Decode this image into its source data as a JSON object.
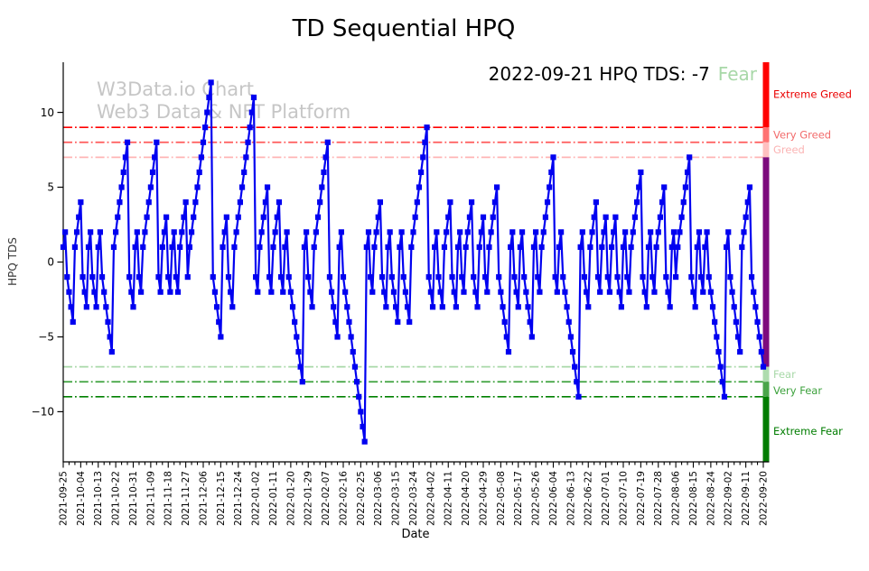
{
  "title": "TD Sequential HPQ",
  "watermark": {
    "line1": "W3Data.io Chart",
    "line2": "Web3 Data & NFT Platform",
    "color": "#c6c6c6"
  },
  "annotation": {
    "prefix": "2022-09-21 HPQ TDS: -7",
    "status": "Fear",
    "status_color": "#a8d8a8"
  },
  "axes": {
    "xlabel": "Date",
    "ylabel": "HPQ TDS",
    "ytick_labels": [
      "−10",
      "−5",
      "0",
      "5",
      "10"
    ],
    "yticks": [
      -10,
      -5,
      0,
      5,
      10
    ]
  },
  "chart_data": {
    "type": "line",
    "title": "TD Sequential HPQ",
    "xlabel": "Date",
    "ylabel": "HPQ TDS",
    "ylim": [
      -13.35,
      13.35
    ],
    "line_color": "#0000f0",
    "marker": "square",
    "grid": false,
    "x_tick_interval_days": 9,
    "x_minor_tick_interval_days": 3,
    "x_tick_labels": [
      "2021-09-25",
      "2021-10-04",
      "2021-10-13",
      "2021-10-22",
      "2021-10-31",
      "2021-11-09",
      "2021-11-18",
      "2021-11-27",
      "2021-12-06",
      "2021-12-15",
      "2021-12-24",
      "2022-01-02",
      "2022-01-11",
      "2022-01-20",
      "2022-01-29",
      "2022-02-07",
      "2022-02-16",
      "2022-02-25",
      "2022-03-06",
      "2022-03-15",
      "2022-03-24",
      "2022-04-02",
      "2022-04-11",
      "2022-04-20",
      "2022-04-29",
      "2022-05-08",
      "2022-05-17",
      "2022-05-26",
      "2022-06-04",
      "2022-06-13",
      "2022-06-22",
      "2022-07-01",
      "2022-07-10",
      "2022-07-19",
      "2022-07-28",
      "2022-08-06",
      "2022-08-15",
      "2022-08-24",
      "2022-09-02",
      "2022-09-11",
      "2022-09-20"
    ],
    "values": [
      1,
      2,
      -1,
      -2,
      -3,
      -4,
      1,
      2,
      3,
      4,
      -1,
      -2,
      -3,
      1,
      2,
      -1,
      -2,
      -3,
      1,
      2,
      -1,
      -2,
      -3,
      -4,
      -5,
      -6,
      1,
      2,
      3,
      4,
      5,
      6,
      7,
      8,
      -1,
      -2,
      -3,
      1,
      2,
      -1,
      -2,
      1,
      2,
      3,
      4,
      5,
      6,
      7,
      8,
      -1,
      -2,
      1,
      2,
      3,
      -1,
      -2,
      1,
      2,
      -1,
      -2,
      1,
      2,
      3,
      4,
      -1,
      1,
      2,
      3,
      4,
      5,
      6,
      7,
      8,
      9,
      10,
      11,
      12,
      -1,
      -2,
      -3,
      -4,
      -5,
      1,
      2,
      3,
      -1,
      -2,
      -3,
      1,
      2,
      3,
      4,
      5,
      6,
      7,
      8,
      9,
      10,
      11,
      -1,
      -2,
      1,
      2,
      3,
      4,
      5,
      -1,
      -2,
      1,
      2,
      3,
      4,
      -1,
      -2,
      1,
      2,
      -1,
      -2,
      -3,
      -4,
      -5,
      -6,
      -7,
      -8,
      1,
      2,
      -1,
      -2,
      -3,
      1,
      2,
      3,
      4,
      5,
      6,
      7,
      8,
      -1,
      -2,
      -3,
      -4,
      -5,
      1,
      2,
      -1,
      -2,
      -3,
      -4,
      -5,
      -6,
      -7,
      -8,
      -9,
      -10,
      -11,
      -12,
      1,
      2,
      -1,
      -2,
      1,
      2,
      3,
      4,
      -1,
      -2,
      -3,
      1,
      2,
      -1,
      -2,
      -3,
      -4,
      1,
      2,
      -1,
      -2,
      -3,
      -4,
      1,
      2,
      3,
      4,
      5,
      6,
      7,
      8,
      9,
      -1,
      -2,
      -3,
      1,
      2,
      -1,
      -2,
      -3,
      1,
      2,
      3,
      4,
      -1,
      -2,
      -3,
      1,
      2,
      -1,
      -2,
      1,
      2,
      3,
      4,
      -1,
      -2,
      -3,
      1,
      2,
      3,
      -1,
      -2,
      1,
      2,
      3,
      4,
      5,
      -1,
      -2,
      -3,
      -4,
      -5,
      -6,
      1,
      2,
      -1,
      -2,
      -3,
      1,
      2,
      -1,
      -2,
      -3,
      -4,
      -5,
      1,
      2,
      -1,
      -2,
      1,
      2,
      3,
      4,
      5,
      6,
      7,
      -1,
      -2,
      1,
      2,
      -1,
      -2,
      -3,
      -4,
      -5,
      -6,
      -7,
      -8,
      -9,
      1,
      2,
      -1,
      -2,
      -3,
      1,
      2,
      3,
      4,
      -1,
      -2,
      1,
      2,
      3,
      -1,
      -2,
      1,
      2,
      3,
      -1,
      -2,
      -3,
      1,
      2,
      -1,
      -2,
      1,
      2,
      3,
      4,
      5,
      6,
      -1,
      -2,
      -3,
      1,
      2,
      -1,
      -2,
      1,
      2,
      3,
      4,
      5,
      -1,
      -2,
      -3,
      1,
      2,
      -1,
      1,
      2,
      3,
      4,
      5,
      6,
      7,
      -1,
      -2,
      -3,
      1,
      2,
      -1,
      -2,
      1,
      2,
      -1,
      -2,
      -3,
      -4,
      -5,
      -6,
      -7,
      -8,
      -9,
      1,
      2,
      -1,
      -2,
      -3,
      -4,
      -5,
      -6,
      1,
      2,
      3,
      4,
      5,
      -1,
      -2,
      -3,
      -4,
      -5,
      -6,
      -7
    ],
    "threshold_lines": [
      {
        "value": 9,
        "label": "Extreme Greed",
        "line_color": "#ff0000",
        "label_color": "#ea0000",
        "label_at": 11.2
      },
      {
        "value": 8,
        "label": "Very Greed",
        "line_color": "#ff5a5a",
        "label_color": "#f26b6b",
        "label_at": 8.5
      },
      {
        "value": 7,
        "label": "Greed",
        "line_color": "#ffb4b4",
        "label_color": "#fbb4b4",
        "label_at": 7.5
      },
      {
        "value": -7,
        "label": "Fear",
        "line_color": "#a8d8a8",
        "label_color": "#a8d8a8",
        "label_at": -7.5
      },
      {
        "value": -8,
        "label": "Very Fear",
        "line_color": "#3da23d",
        "label_color": "#3da23d",
        "label_at": -8.6
      },
      {
        "value": -9,
        "label": "Extreme Fear",
        "line_color": "#008000",
        "label_color": "#007d00",
        "label_at": -11.3
      }
    ],
    "gradient_bar": [
      {
        "from": 13.35,
        "to": 9,
        "color": "#ff0000"
      },
      {
        "from": 9,
        "to": 8,
        "color": "#ff7272"
      },
      {
        "from": 8,
        "to": 7,
        "color": "#ffc0c0"
      },
      {
        "from": 7,
        "to": -7,
        "color": "#7d0b7d"
      },
      {
        "from": -7,
        "to": -8,
        "color": "#aedcae"
      },
      {
        "from": -8,
        "to": -9,
        "color": "#4aa54a"
      },
      {
        "from": -9,
        "to": -13.35,
        "color": "#007d00"
      }
    ]
  }
}
